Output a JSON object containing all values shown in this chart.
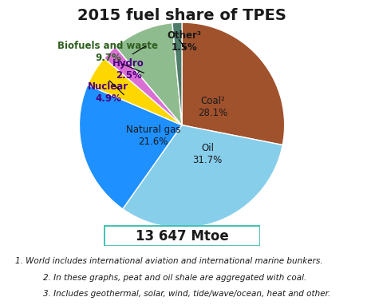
{
  "title": "2015 fuel share of TPES",
  "total_label": "13 647 Mtoe",
  "slices": [
    {
      "label": "Coal²",
      "pct": 28.1,
      "color": "#A0522D",
      "text_color": "#1a1a1a"
    },
    {
      "label": "Oil",
      "pct": 31.7,
      "color": "#87CEEB",
      "text_color": "#1a1a1a"
    },
    {
      "label": "Natural gas",
      "pct": 21.6,
      "color": "#1E90FF",
      "text_color": "#1a1a1a"
    },
    {
      "label": "Nuclear",
      "pct": 4.9,
      "color": "#FFD700",
      "text_color": "#4B0082"
    },
    {
      "label": "Hydro",
      "pct": 2.5,
      "color": "#DA70D6",
      "text_color": "#4B0082"
    },
    {
      "label": "Biofuels and waste",
      "pct": 9.7,
      "color": "#8FBC8F",
      "text_color": "#1a1a1a"
    },
    {
      "label": "Other³",
      "pct": 1.5,
      "color": "#4e7c6a",
      "text_color": "#1a1a1a"
    }
  ],
  "footnotes": [
    "1. World includes international aviation and international marine bunkers.",
    "2. In these graphs, peat and oil shale are aggregated with coal.",
    "3. Includes geothermal, solar, wind, tide/wave/ocean, heat and other."
  ],
  "start_angle": 90,
  "box_color": "#40E0D0",
  "title_fontsize": 14,
  "label_fontsize": 8.5,
  "footnote_fontsize": 7.5
}
